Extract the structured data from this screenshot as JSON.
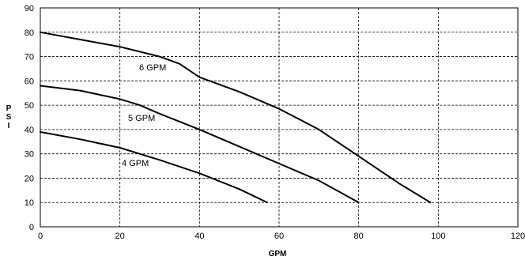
{
  "chart_data": {
    "type": "line",
    "xlabel": "GPM",
    "ylabel": "PSI",
    "xlim": [
      0,
      120
    ],
    "ylim": [
      0,
      90
    ],
    "x_ticks": [
      "0",
      "20",
      "40",
      "60",
      "80",
      "100",
      "120"
    ],
    "y_ticks": [
      "0",
      "10",
      "20",
      "30",
      "40",
      "50",
      "60",
      "70",
      "80",
      "90"
    ],
    "grid": true,
    "series": [
      {
        "name": "6 GPM",
        "points": [
          [
            0,
            80
          ],
          [
            10,
            77
          ],
          [
            20,
            74
          ],
          [
            30,
            70
          ],
          [
            35,
            67
          ],
          [
            40,
            61.5
          ],
          [
            50,
            55.5
          ],
          [
            60,
            48.5
          ],
          [
            70,
            40
          ],
          [
            80,
            29
          ],
          [
            90,
            18
          ],
          [
            98,
            10
          ]
        ]
      },
      {
        "name": "5 GPM",
        "points": [
          [
            0,
            58
          ],
          [
            10,
            56
          ],
          [
            20,
            52.5
          ],
          [
            25,
            50
          ],
          [
            30,
            46.5
          ],
          [
            40,
            40
          ],
          [
            50,
            33
          ],
          [
            60,
            26
          ],
          [
            70,
            19
          ],
          [
            80,
            10
          ]
        ]
      },
      {
        "name": "4 GPM",
        "points": [
          [
            0,
            39
          ],
          [
            10,
            36
          ],
          [
            20,
            32.5
          ],
          [
            25,
            30
          ],
          [
            30,
            27.5
          ],
          [
            40,
            22
          ],
          [
            50,
            15.5
          ],
          [
            57,
            10
          ]
        ]
      }
    ]
  }
}
